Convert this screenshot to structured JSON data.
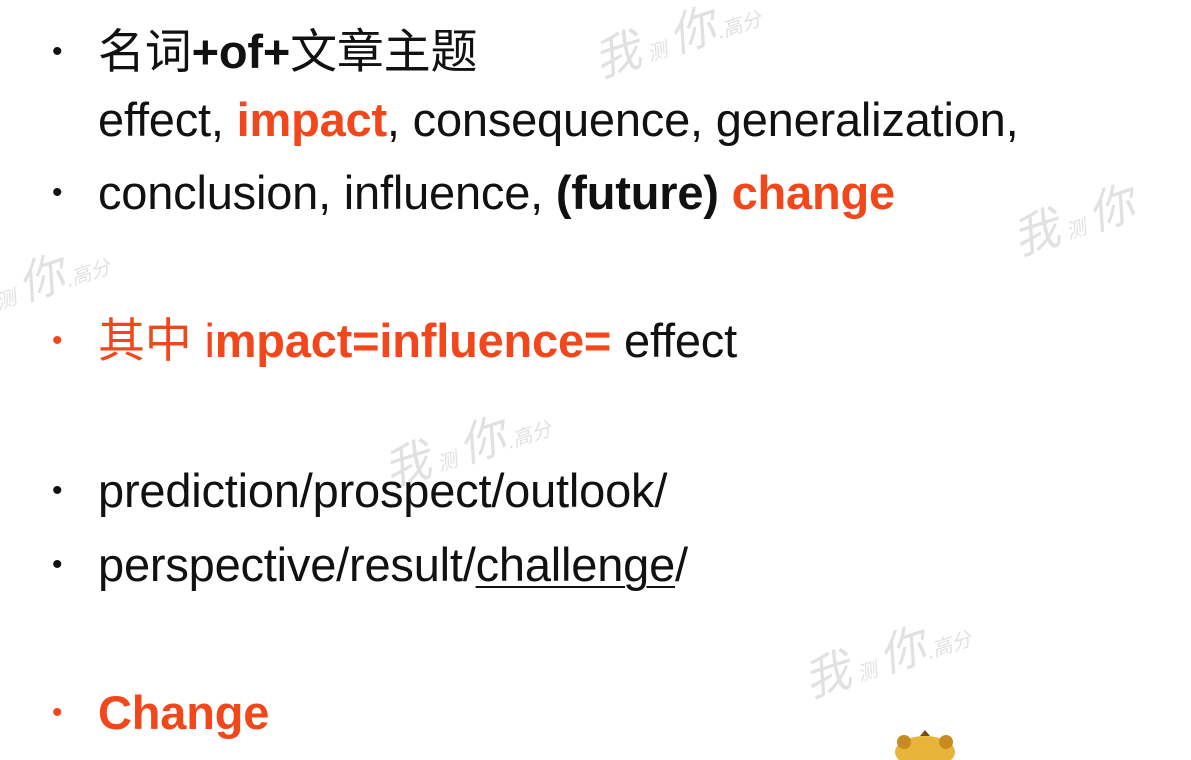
{
  "watermark": {
    "mark_text": "我 测 你 高分"
  },
  "bullets": [
    {
      "id": "topic-template",
      "segments": [
        {
          "text": "名词",
          "style": "cjk"
        },
        {
          "text": "+of+",
          "style": "bold"
        },
        {
          "text": "文章主题",
          "style": "cjk"
        }
      ]
    },
    {
      "id": "topic-template-cont",
      "no_bullet": true,
      "segments": [
        {
          "text": "effect, ",
          "style": "normal"
        },
        {
          "text": "impact",
          "style": "red-bold"
        },
        {
          "text": ", consequence, generalization,",
          "style": "normal"
        }
      ]
    },
    {
      "id": "conclusion-line",
      "segments": [
        {
          "text": "conclusion, influence, ",
          "style": "normal"
        },
        {
          "text": "(future)",
          "style": "bold"
        },
        {
          "text": " ",
          "style": "normal"
        },
        {
          "text": "change",
          "style": "red-bold"
        }
      ]
    },
    {
      "id": "impact-equals",
      "red_bullet": true,
      "segments": [
        {
          "text": "其中",
          "style": "red-cjk"
        },
        {
          "text": " i",
          "style": "red"
        },
        {
          "text": "mpact=influence=",
          "style": "red-bold"
        },
        {
          "text": " effect",
          "style": "normal"
        }
      ]
    },
    {
      "id": "prediction-line",
      "segments": [
        {
          "text": "prediction/prospect/outlook/",
          "style": "normal"
        }
      ]
    },
    {
      "id": "perspective-line",
      "segments": [
        {
          "text": "perspective/result/",
          "style": "normal"
        },
        {
          "text": "challenge",
          "style": "underline"
        },
        {
          "text": "/",
          "style": "normal"
        }
      ]
    },
    {
      "id": "change-line",
      "red_bullet": true,
      "segments": [
        {
          "text": "Change",
          "style": "red-bold"
        }
      ]
    }
  ]
}
